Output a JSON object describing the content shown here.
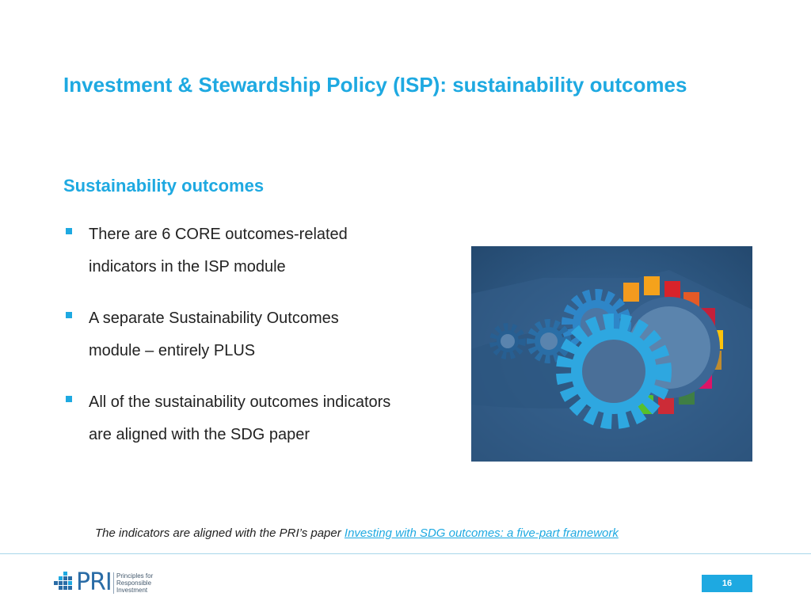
{
  "slide": {
    "title": "Investment & Stewardship Policy (ISP): sustainability outcomes",
    "subtitle": "Sustainability outcomes",
    "bullets": [
      {
        "line1": "There are 6 CORE outcomes-related",
        "line2": "indicators in the ISP module"
      },
      {
        "line1": "A separate Sustainability Outcomes",
        "line2": "module – entirely PLUS"
      },
      {
        "line1": "All of the sustainability outcomes indicators",
        "line2": "are aligned with the SDG paper"
      }
    ],
    "footnote": {
      "text": "The indicators are aligned with the PRI’s paper ",
      "link_text": "Investing with SDG outcomes: a five-part framework"
    },
    "page_number": "16"
  },
  "logo": {
    "name": "PRI",
    "tagline_1": "Principles for",
    "tagline_2": "Responsible",
    "tagline_3": "Investment"
  },
  "colors": {
    "accent": "#1ea9e1",
    "image_background": "#2e5987",
    "logo_blue": "#2a6ca6"
  },
  "icons": [
    "gears-illustration",
    "bullet-square-icon",
    "pri-logo-mark"
  ]
}
